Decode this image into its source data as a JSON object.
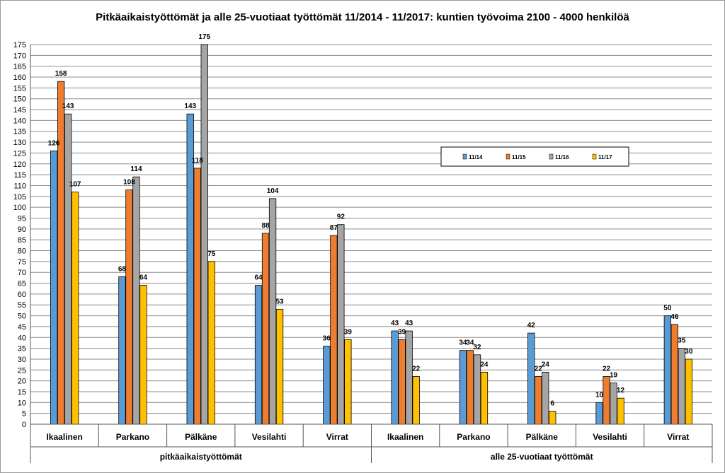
{
  "chart_data": {
    "type": "bar",
    "title": "Pitkäaikaistyöttömät ja alle 25-vuotiaat työttömät 11/2014 - 11/2017: kuntien työvoima 2100 - 4000 henkilöä",
    "xlabel": "",
    "ylabel": "",
    "ylim": [
      0,
      175
    ],
    "y_ticks": [
      "0",
      "5",
      "10",
      "15",
      "20",
      "25",
      "30",
      "35",
      "40",
      "45",
      "50",
      "55",
      "60",
      "65",
      "70",
      "75",
      "80",
      "85",
      "90",
      "95",
      "100",
      "105",
      "110",
      "115",
      "120",
      "125",
      "130",
      "135",
      "140",
      "145",
      "150",
      "155",
      "160",
      "165",
      "170",
      "175"
    ],
    "grid": true,
    "legend_position": "right",
    "groups": [
      {
        "label": "pitkäaikaistyöttömät",
        "categories": [
          "Ikaalinen",
          "Parkano",
          "Pälkäne",
          "Vesilahti",
          "Virrat"
        ]
      },
      {
        "label": "alle 25-vuotiaat työttömät",
        "categories": [
          "Ikaalinen",
          "Parkano",
          "Pälkäne",
          "Vesilahti",
          "Virrat"
        ]
      }
    ],
    "categories": [
      "Ikaalinen",
      "Parkano",
      "Pälkäne",
      "Vesilahti",
      "Virrat",
      "Ikaalinen",
      "Parkano",
      "Pälkäne",
      "Vesilahti",
      "Virrat"
    ],
    "series": [
      {
        "name": "11/14",
        "color": "#5B9BD5",
        "values": [
          126,
          68,
          143,
          64,
          36,
          43,
          34,
          42,
          10,
          50
        ]
      },
      {
        "name": "11/15",
        "color": "#ED7D31",
        "values": [
          158,
          108,
          118,
          88,
          87,
          39,
          34,
          22,
          22,
          46
        ]
      },
      {
        "name": "11/16",
        "color": "#A5A5A5",
        "values": [
          143,
          114,
          175,
          104,
          92,
          43,
          32,
          24,
          19,
          35
        ]
      },
      {
        "name": "11/17",
        "color": "#FFC000",
        "values": [
          107,
          64,
          75,
          53,
          39,
          22,
          24,
          6,
          12,
          30
        ]
      }
    ]
  }
}
